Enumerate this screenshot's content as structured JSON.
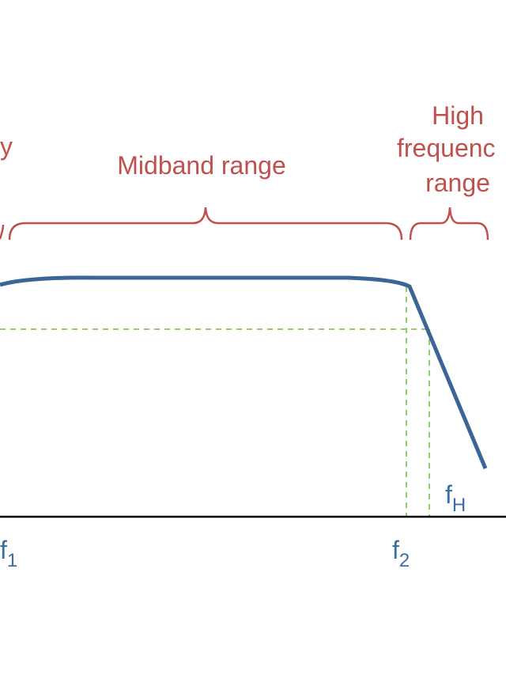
{
  "labels": {
    "low_range_fragment": "y",
    "midband": "Midband range",
    "high_range": [
      "High",
      "frequenc",
      "range"
    ],
    "f1": {
      "base": "f",
      "sub": "1"
    },
    "f2": {
      "base": "f",
      "sub": "2"
    },
    "fH": {
      "base": "f",
      "sub": "H"
    }
  }
}
